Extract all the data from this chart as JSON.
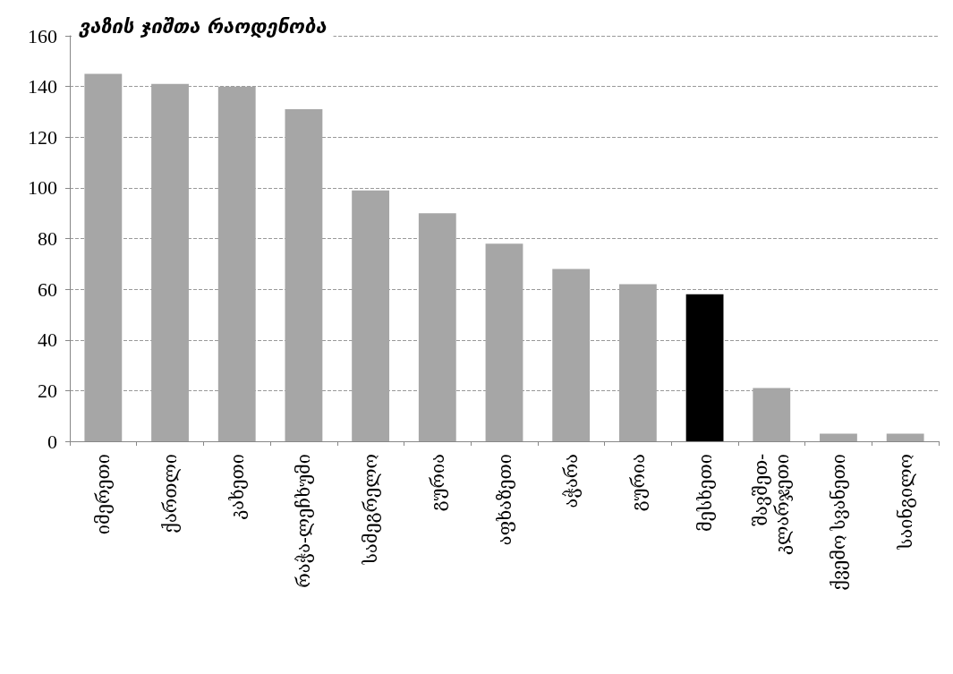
{
  "chart_data": {
    "type": "bar",
    "title": "ვაზის ჯიშთა რაოდენობა",
    "categories": [
      "იმერეთი",
      "ქართლი",
      "კახეთი",
      "რაჭა-ლეჩხუმი",
      "სამეგრელო",
      "გურია",
      "აფხაზეთი",
      "აჭარა",
      "გურია",
      "მესხეთი",
      "შავშეთ-\nკლარჯეთი",
      "ქვემო სვანეთი",
      "საინგილო"
    ],
    "values": [
      145,
      141,
      140,
      131,
      99,
      90,
      78,
      68,
      62,
      58,
      21,
      3,
      3
    ],
    "colors": [
      "#a6a6a6",
      "#a6a6a6",
      "#a6a6a6",
      "#a6a6a6",
      "#a6a6a6",
      "#a6a6a6",
      "#a6a6a6",
      "#a6a6a6",
      "#a6a6a6",
      "#000000",
      "#a6a6a6",
      "#a6a6a6",
      "#a6a6a6"
    ],
    "ylim": [
      0,
      160
    ],
    "yticks": [
      0,
      20,
      40,
      60,
      80,
      100,
      120,
      140,
      160
    ],
    "grid": "y"
  }
}
